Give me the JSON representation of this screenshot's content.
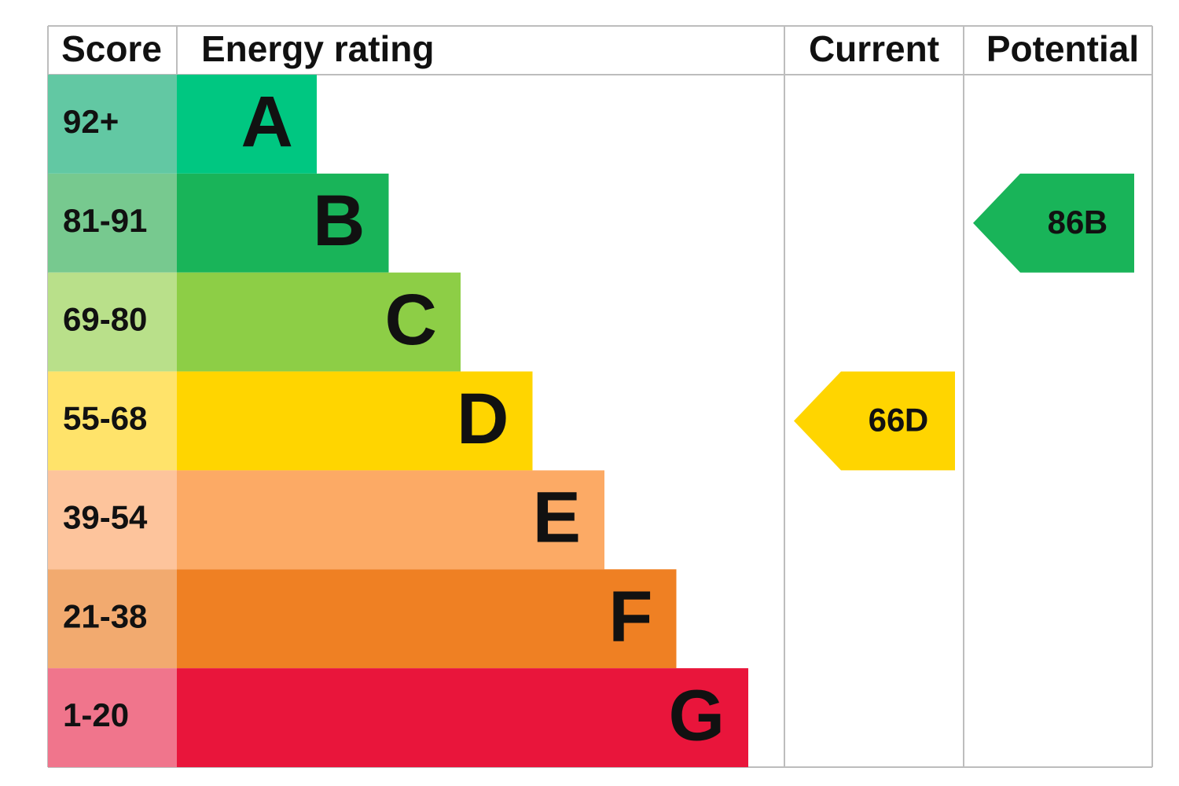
{
  "header": {
    "score": "Score",
    "rating": "Energy rating",
    "current": "Current",
    "potential": "Potential"
  },
  "bands": [
    {
      "score": "92+",
      "rating": "A",
      "color": "#00c781",
      "score_color": "#62c8a3"
    },
    {
      "score": "81-91",
      "rating": "B",
      "color": "#19b459",
      "score_color": "#77c98f"
    },
    {
      "score": "69-80",
      "rating": "C",
      "color": "#8dce46",
      "score_color": "#b9e08a"
    },
    {
      "score": "55-68",
      "rating": "D",
      "color": "#ffd500",
      "score_color": "#ffe36a"
    },
    {
      "score": "39-54",
      "rating": "E",
      "color": "#fcaa65",
      "score_color": "#fdc49c"
    },
    {
      "score": "21-38",
      "rating": "F",
      "color": "#ef8023",
      "score_color": "#f2aa6f"
    },
    {
      "score": "1-20",
      "rating": "G",
      "color": "#e9153b",
      "score_color": "#f0758c"
    }
  ],
  "current": {
    "value": 66,
    "rating": "D"
  },
  "potential": {
    "value": 86,
    "rating": "B"
  }
}
